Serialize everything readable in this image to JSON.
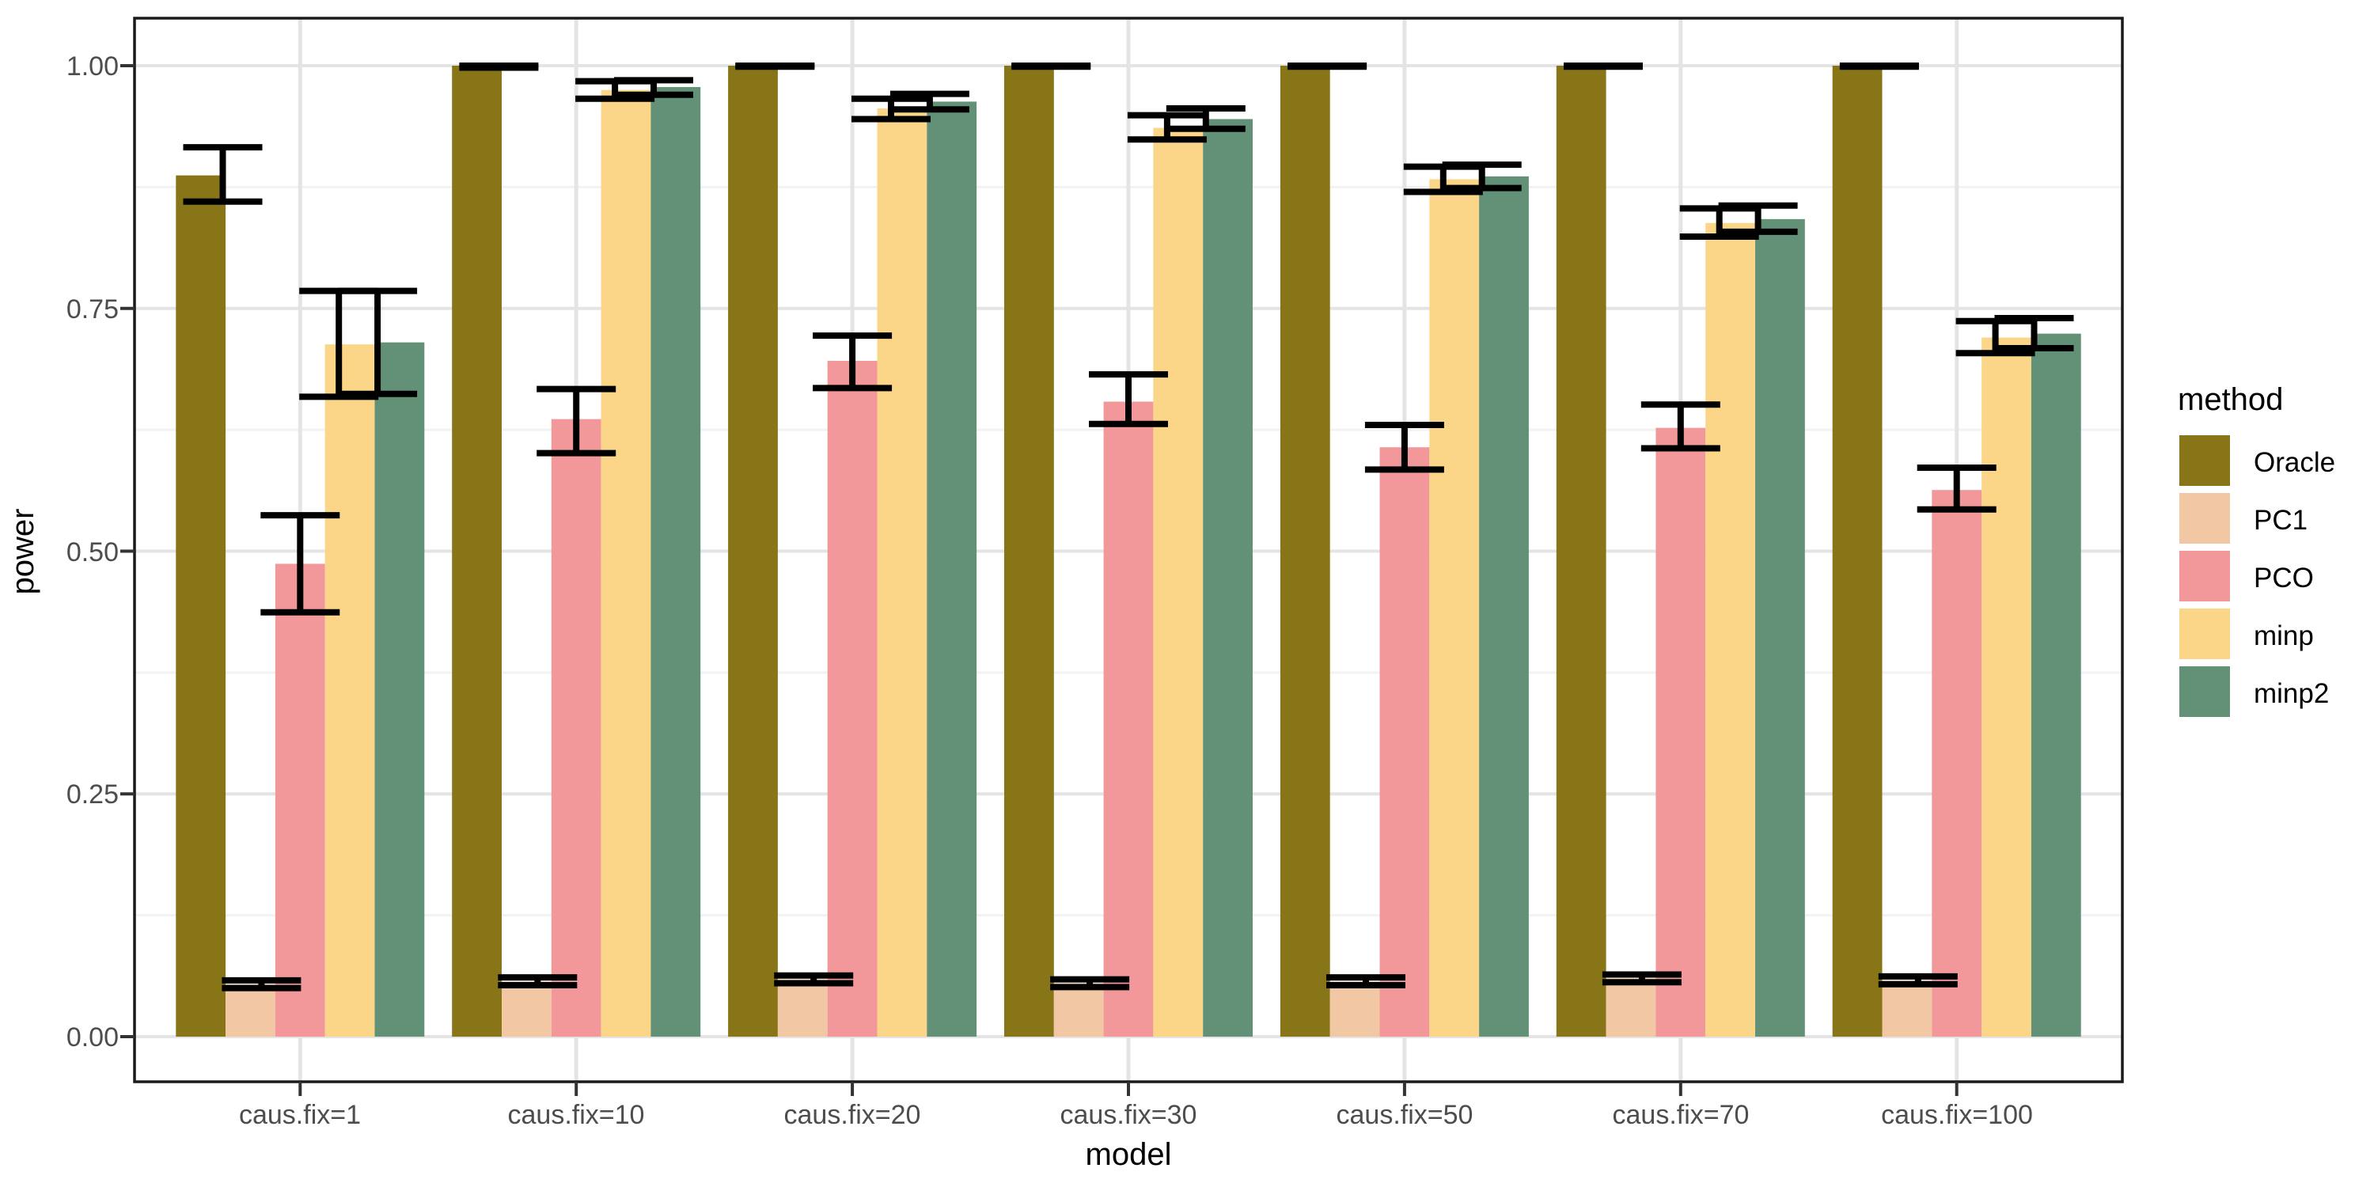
{
  "chart_data": {
    "type": "bar",
    "title": "",
    "xlabel": "model",
    "ylabel": "power",
    "legend_title": "method",
    "legend_position": "right",
    "grid": true,
    "ylim": [
      0,
      1
    ],
    "ytick_values": [
      0,
      0.25,
      0.5,
      0.75,
      1.0
    ],
    "ytick_labels": [
      "0.00",
      "0.25",
      "0.50",
      "0.75",
      "1.00"
    ],
    "categories": [
      "caus.fix=1",
      "caus.fix=10",
      "caus.fix=20",
      "caus.fix=30",
      "caus.fix=50",
      "caus.fix=70",
      "caus.fix=100"
    ],
    "series": [
      {
        "name": "Oracle",
        "color": "#877518",
        "values": [
          0.887,
          1.0,
          1.0,
          1.0,
          1.0,
          1.0,
          1.0
        ],
        "err_low": [
          0.86,
          0.998,
          0.999,
          0.999,
          0.999,
          0.999,
          0.999
        ],
        "err_high": [
          0.916,
          1.0,
          1.0,
          1.0,
          1.0,
          1.0,
          1.0
        ]
      },
      {
        "name": "PC1",
        "color": "#F2C7A4",
        "values": [
          0.054,
          0.057,
          0.059,
          0.055,
          0.057,
          0.06,
          0.058
        ],
        "err_low": [
          0.05,
          0.053,
          0.055,
          0.051,
          0.053,
          0.056,
          0.054
        ],
        "err_high": [
          0.058,
          0.061,
          0.063,
          0.059,
          0.061,
          0.064,
          0.062
        ]
      },
      {
        "name": "PCO",
        "color": "#F2989A",
        "values": [
          0.487,
          0.636,
          0.696,
          0.654,
          0.607,
          0.627,
          0.563
        ],
        "err_low": [
          0.437,
          0.601,
          0.668,
          0.631,
          0.584,
          0.606,
          0.543
        ],
        "err_high": [
          0.537,
          0.667,
          0.722,
          0.682,
          0.63,
          0.651,
          0.586
        ]
      },
      {
        "name": "minp",
        "color": "#FBD688",
        "values": [
          0.713,
          0.975,
          0.956,
          0.936,
          0.883,
          0.838,
          0.72
        ],
        "err_low": [
          0.659,
          0.966,
          0.945,
          0.924,
          0.87,
          0.824,
          0.704
        ],
        "err_high": [
          0.768,
          0.984,
          0.966,
          0.949,
          0.896,
          0.853,
          0.737
        ]
      },
      {
        "name": "minp2",
        "color": "#639178",
        "values": [
          0.715,
          0.978,
          0.963,
          0.945,
          0.886,
          0.842,
          0.724
        ],
        "err_low": [
          0.662,
          0.97,
          0.955,
          0.935,
          0.874,
          0.829,
          0.709
        ],
        "err_high": [
          0.768,
          0.985,
          0.971,
          0.956,
          0.898,
          0.856,
          0.74
        ]
      }
    ],
    "colors": {
      "panel_border": "#1A1A1A",
      "grid_major": "#E4E4E4",
      "grid_minor": "#F2F2F2",
      "error_bar": "#000000",
      "tick_mark": "#333333",
      "background": "#FFFFFF"
    }
  }
}
